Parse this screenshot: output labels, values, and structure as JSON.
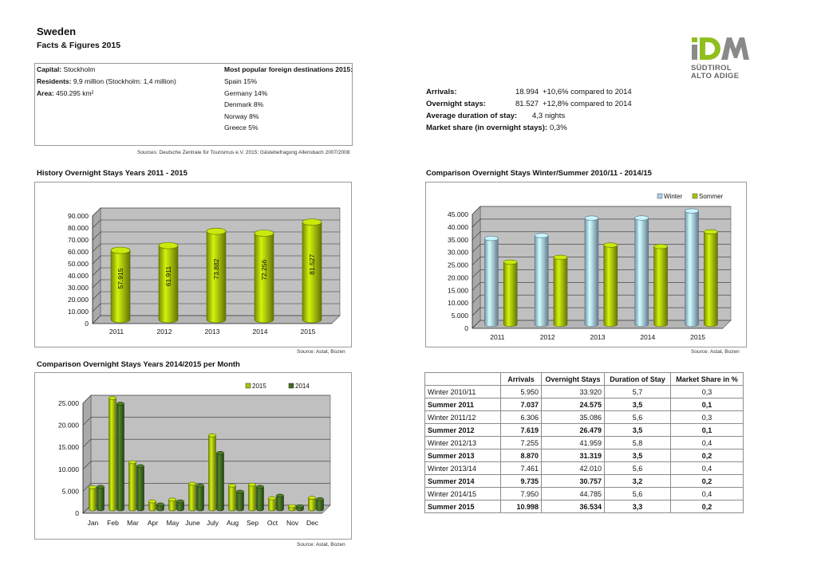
{
  "header": {
    "title": "Sweden",
    "subtitle": "Facts & Figures 2015"
  },
  "logo": {
    "mark": "IDM",
    "line1": "SÜDTIROL",
    "line2": "ALTO ADIGE"
  },
  "facts": {
    "capital_label": "Capital:",
    "capital_value": "Stockholm",
    "residents_label": "Residents:",
    "residents_value": "9,9 million (Stockholm: 1,4 million)",
    "area_label": "Area:",
    "area_value": "450.295 km²",
    "destinations_title": "Most popular foreign destinations 2015:",
    "destinations": [
      "Spain 15%",
      "Germany 14%",
      "Denmark 8%",
      "Norway 8%",
      "Greece 5%"
    ],
    "sources": "Sources: Deutsche Zentrale für Tourismus e.V. 2015; Gästebefragung Allensbach 2007/2008"
  },
  "stats": {
    "arrivals_label": "Arrivals:",
    "arrivals_value": "18.994",
    "arrivals_change": "+10,6% compared to 2014",
    "overnight_label": "Overnight stays:",
    "overnight_value": "81.527",
    "overnight_change": "+12,8% compared to 2014",
    "duration_label": "Average duration of stay:",
    "duration_value": "4,3 nights",
    "share_label": "Market share (in overnight stays):",
    "share_value": "0,3%"
  },
  "colors": {
    "green": "#a8c20a",
    "green_dark": "#7a8f00",
    "darkgreen": "#3f6b1f",
    "blue": "#a7cdf0",
    "plot_bg": "#c0c0c0"
  },
  "chart_titles": {
    "history": "History Overnight Stays Years 2011 - 2015",
    "winter_summer": "Comparison Overnight Stays Winter/Summer 2010/11 - 2014/15",
    "monthly": "Comparison Overnight Stays Years 2014/2015 per Month"
  },
  "source_note": "Source: Astat, Bozen",
  "chart_data": [
    {
      "type": "bar",
      "title": "History Overnight Stays Years 2011 - 2015",
      "categories": [
        "2011",
        "2012",
        "2013",
        "2014",
        "2015"
      ],
      "values": [
        57915,
        61911,
        73882,
        72256,
        81527
      ],
      "value_labels": [
        "57.915",
        "61.911",
        "73.882",
        "72.256",
        "81.527"
      ],
      "ylim": [
        0,
        90000
      ],
      "yticks": [
        "0",
        "10.000",
        "20.000",
        "30.000",
        "40.000",
        "50.000",
        "60.000",
        "70.000",
        "80.000",
        "90.000"
      ],
      "grid": true
    },
    {
      "type": "bar",
      "title": "Comparison Overnight Stays Winter/Summer 2010/11 - 2014/15",
      "categories": [
        "2011",
        "2012",
        "2013",
        "2014",
        "2015"
      ],
      "series": [
        {
          "name": "Winter",
          "values": [
            33920,
            35086,
            41959,
            42010,
            44785
          ]
        },
        {
          "name": "Sommer",
          "values": [
            24575,
            26479,
            31319,
            30757,
            36534
          ]
        }
      ],
      "ylim": [
        0,
        45000
      ],
      "yticks": [
        "0",
        "5.000",
        "10.000",
        "15.000",
        "20.000",
        "25.000",
        "30.000",
        "35.000",
        "40.000",
        "45.000"
      ],
      "legend": "top-right",
      "grid": true
    },
    {
      "type": "bar",
      "title": "Comparison Overnight Stays Years 2014/2015 per Month",
      "categories": [
        "Jan",
        "Feb",
        "Mar",
        "Apr",
        "May",
        "June",
        "July",
        "Aug",
        "Sep",
        "Oct",
        "Nov",
        "Dec"
      ],
      "series": [
        {
          "name": "2015",
          "values": [
            5000,
            25300,
            10700,
            1800,
            2200,
            5800,
            16800,
            5400,
            5600,
            2500,
            700,
            2600
          ]
        },
        {
          "name": "2014",
          "values": [
            5100,
            24000,
            9800,
            1100,
            1800,
            5400,
            12800,
            4000,
            5100,
            3100,
            700,
            2300
          ]
        }
      ],
      "ylim": [
        0,
        25000
      ],
      "yticks": [
        "0",
        "5.000",
        "10.000",
        "15.000",
        "20.000",
        "25.000"
      ],
      "legend": "top-right",
      "grid": true
    },
    {
      "type": "table",
      "columns": [
        "",
        "Arrivals",
        "Overnight Stays",
        "Duration of Stay",
        "Market Share in %"
      ],
      "rows": [
        [
          "Winter 2010/11",
          "5.950",
          "33.920",
          "5,7",
          "0,3"
        ],
        [
          "Summer 2011",
          "7.037",
          "24.575",
          "3,5",
          "0,1"
        ],
        [
          "Winter 2011/12",
          "6.306",
          "35.086",
          "5,6",
          "0,3"
        ],
        [
          "Summer 2012",
          "7.619",
          "26.479",
          "3,5",
          "0,1"
        ],
        [
          "Winter 2012/13",
          "7.255",
          "41.959",
          "5,8",
          "0,4"
        ],
        [
          "Summer 2013",
          "8.870",
          "31.319",
          "3,5",
          "0,2"
        ],
        [
          "Winter 2013/14",
          "7.461",
          "42.010",
          "5,6",
          "0,4"
        ],
        [
          "Summer 2014",
          "9.735",
          "30.757",
          "3,2",
          "0,2"
        ],
        [
          "Winter 2014/15",
          "7.950",
          "44.785",
          "5,6",
          "0,4"
        ],
        [
          "Summer 2015",
          "10.998",
          "36.534",
          "3,3",
          "0,2"
        ]
      ]
    }
  ]
}
